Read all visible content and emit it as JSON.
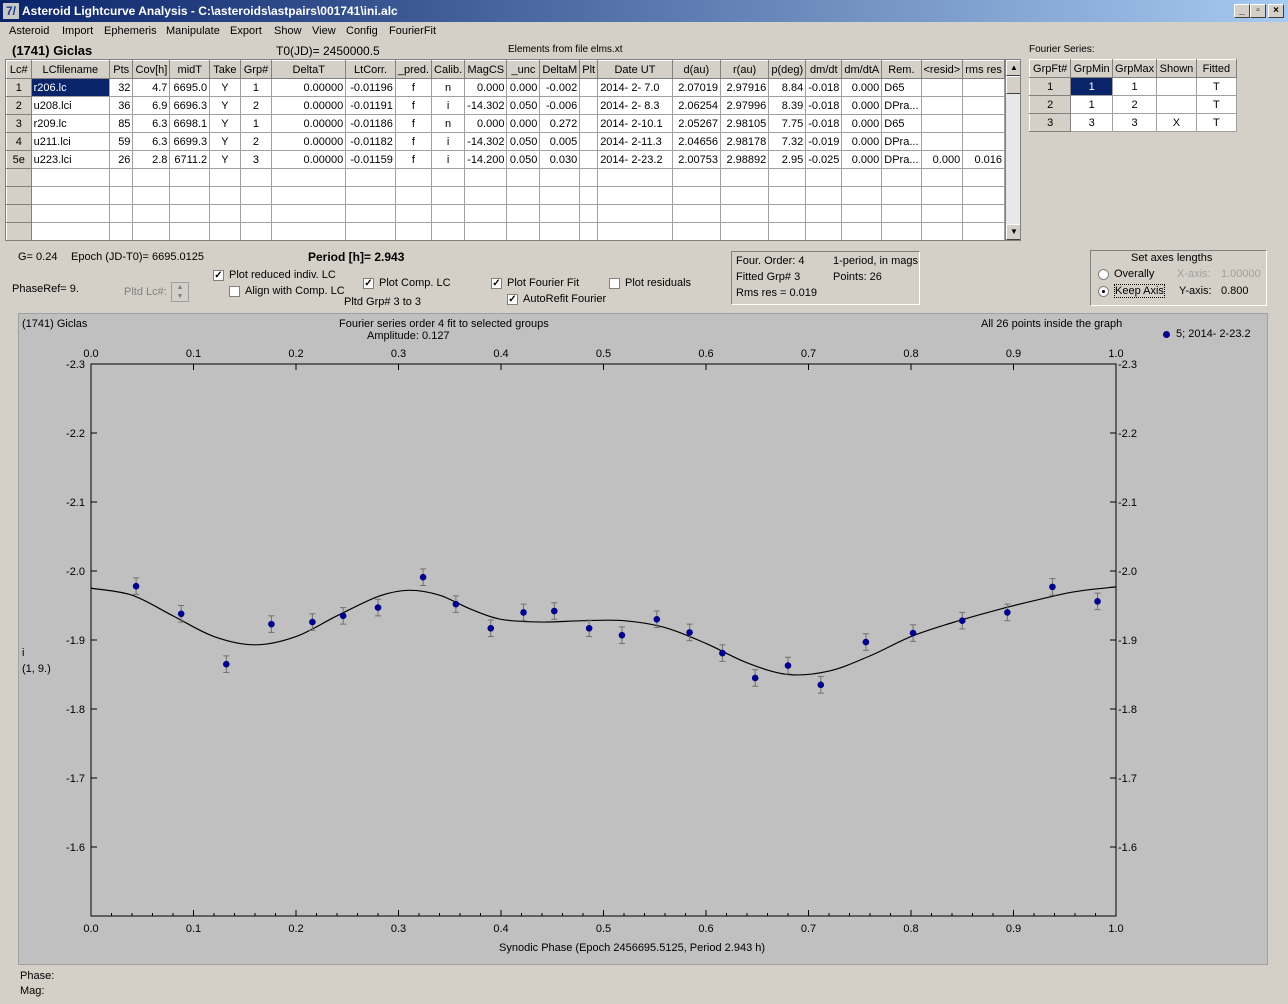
{
  "window": {
    "title": "Asteroid Lightcurve Analysis - C:\\asteroids\\astpairs\\001741\\ini.alc",
    "icon": "7/"
  },
  "menu": [
    "Asteroid",
    "Import",
    "Ephemeris",
    "Manipulate",
    "Export",
    "Show",
    "View",
    "Config",
    "FourierFit"
  ],
  "header": {
    "asteroid": "(1741) Giclas",
    "t0": "T0(JD)= 2450000.5",
    "elements": "Elements from file elms.xt"
  },
  "lc_table": {
    "columns": [
      "Lc#",
      "LCfilename",
      "Pts",
      "Cov[h]",
      "midT",
      "Take",
      "Grp#",
      "DeltaT",
      "LtCorr.",
      "_pred.",
      "Calib.",
      "MagCS",
      "_unc",
      "DeltaM",
      "Plt",
      "Date UT",
      "d(au)",
      "r(au)",
      "p(deg)",
      "dm/dt",
      "dm/dtA",
      "Rem.",
      "<resid>",
      "rms res"
    ],
    "rows": [
      [
        "1",
        "r206.lc",
        "32",
        "4.7",
        "6695.0",
        "Y",
        "1",
        "0.00000",
        "-0.01196",
        "f",
        "n",
        "0.000",
        "0.000",
        "-0.002",
        "",
        "2014- 2- 7.0",
        "2.07019",
        "2.97916",
        "8.84",
        "-0.018",
        "0.000",
        "D65",
        "",
        ""
      ],
      [
        "2",
        "u208.lci",
        "36",
        "6.9",
        "6696.3",
        "Y",
        "2",
        "0.00000",
        "-0.01191",
        "f",
        "i",
        "-14.302",
        "0.050",
        "-0.006",
        "",
        "2014- 2- 8.3",
        "2.06254",
        "2.97996",
        "8.39",
        "-0.018",
        "0.000",
        "DPra...",
        "",
        ""
      ],
      [
        "3",
        "r209.lc",
        "85",
        "6.3",
        "6698.1",
        "Y",
        "1",
        "0.00000",
        "-0.01186",
        "f",
        "n",
        "0.000",
        "0.000",
        "0.272",
        "",
        "2014- 2-10.1",
        "2.05267",
        "2.98105",
        "7.75",
        "-0.018",
        "0.000",
        "D65",
        "",
        ""
      ],
      [
        "4",
        "u211.lci",
        "59",
        "6.3",
        "6699.3",
        "Y",
        "2",
        "0.00000",
        "-0.01182",
        "f",
        "i",
        "-14.302",
        "0.050",
        "0.005",
        "",
        "2014- 2-11.3",
        "2.04656",
        "2.98178",
        "7.32",
        "-0.019",
        "0.000",
        "DPra...",
        "",
        ""
      ],
      [
        "5e",
        "u223.lci",
        "26",
        "2.8",
        "6711.2",
        "Y",
        "3",
        "0.00000",
        "-0.01159",
        "f",
        "i",
        "-14.200",
        "0.050",
        "0.030",
        "",
        "2014- 2-23.2",
        "2.00753",
        "2.98892",
        "2.95",
        "-0.025",
        "0.000",
        "DPra...",
        "0.000",
        "0.016"
      ]
    ]
  },
  "fourier_series": {
    "label": "Fourier Series:",
    "columns": [
      "GrpFt#",
      "GrpMin",
      "GrpMax",
      "Shown",
      "Fitted"
    ],
    "rows": [
      [
        "1",
        "1",
        "1",
        "",
        "T"
      ],
      [
        "2",
        "1",
        "2",
        "",
        "T"
      ],
      [
        "3",
        "3",
        "3",
        "X",
        "T"
      ]
    ]
  },
  "controls": {
    "g": "G= 0.24",
    "epoch": "Epoch (JD-T0)= 6695.0125",
    "period": "Period [h]= 2.943",
    "phaseref": "PhaseRef= 9.",
    "pltd_lc": "Pltd Lc#:",
    "plot_reduced": "Plot reduced indiv. LC",
    "align_comp": "Align with Comp. LC",
    "plot_comp": "Plot Comp. LC",
    "pltd_grp": "Pltd Grp#  3  to  3",
    "plot_fourier": "Plot Fourier Fit",
    "autorefit": "AutoRefit Fourier",
    "plot_residuals": "Plot residuals",
    "checks": {
      "plot_reduced": true,
      "align_comp": false,
      "plot_comp": true,
      "plot_fourier": true,
      "autorefit": true,
      "plot_residuals": false
    }
  },
  "fit_info": {
    "order": "Four. Order:  4",
    "period_mode": "1-period, in mags",
    "fitted": "Fitted Grp# 3",
    "points": "Points: 26",
    "rms": "Rms res     = 0.019"
  },
  "axes_box": {
    "title": "Set axes lengths",
    "overally": "Overally",
    "keep_axis": "Keep Axis",
    "xaxis_label": "X-axis:",
    "xaxis_value": "1.00000",
    "yaxis_label": "Y-axis:",
    "yaxis_value": "0.800",
    "selected": "keep_axis"
  },
  "status": {
    "phase": "Phase:",
    "mag": "Mag:"
  },
  "chart_data": {
    "type": "scatter",
    "title_left": "(1741) Giclas",
    "title_center": "Fourier series order 4 fit to selected groups",
    "subtitle_center": "Amplitude: 0.127",
    "title_right": "All 26 points inside the graph",
    "legend": "5; 2014- 2-23.2",
    "ylabel": "i",
    "ylabel2": "(1, 9.)",
    "xlabel": "Synodic Phase (Epoch 2456695.5125, Period 2.943 h)",
    "xlim": [
      0.0,
      1.0
    ],
    "ylim": [
      -2.3,
      -1.5
    ],
    "y_inverted": true,
    "xticks": [
      "0.0",
      "0.1",
      "0.2",
      "0.3",
      "0.4",
      "0.5",
      "0.6",
      "0.7",
      "0.8",
      "0.9",
      "1.0"
    ],
    "yticks": [
      "-2.3",
      "-2.2",
      "-2.1",
      "-2.0",
      "-1.9",
      "-1.8",
      "-1.7",
      "-1.6"
    ],
    "point_color": "#00008b",
    "series": [
      {
        "name": "5; 2014- 2-23.2",
        "points": [
          [
            0.044,
            -1.978
          ],
          [
            0.088,
            -1.938
          ],
          [
            0.132,
            -1.865
          ],
          [
            0.176,
            -1.923
          ],
          [
            0.216,
            -1.926
          ],
          [
            0.246,
            -1.935
          ],
          [
            0.28,
            -1.947
          ],
          [
            0.324,
            -1.991
          ],
          [
            0.356,
            -1.952
          ],
          [
            0.39,
            -1.917
          ],
          [
            0.422,
            -1.94
          ],
          [
            0.452,
            -1.942
          ],
          [
            0.486,
            -1.917
          ],
          [
            0.518,
            -1.907
          ],
          [
            0.552,
            -1.93
          ],
          [
            0.584,
            -1.911
          ],
          [
            0.616,
            -1.881
          ],
          [
            0.648,
            -1.845
          ],
          [
            0.68,
            -1.863
          ],
          [
            0.712,
            -1.835
          ],
          [
            0.756,
            -1.897
          ],
          [
            0.802,
            -1.91
          ],
          [
            0.85,
            -1.928
          ],
          [
            0.894,
            -1.94
          ],
          [
            0.938,
            -1.977
          ],
          [
            0.982,
            -1.956
          ]
        ],
        "errors": 0.012
      }
    ],
    "fit_curve": [
      [
        0.0,
        -1.975
      ],
      [
        0.04,
        -1.965
      ],
      [
        0.08,
        -1.935
      ],
      [
        0.12,
        -1.905
      ],
      [
        0.16,
        -1.893
      ],
      [
        0.2,
        -1.905
      ],
      [
        0.24,
        -1.935
      ],
      [
        0.28,
        -1.963
      ],
      [
        0.31,
        -1.972
      ],
      [
        0.34,
        -1.965
      ],
      [
        0.37,
        -1.945
      ],
      [
        0.4,
        -1.93
      ],
      [
        0.44,
        -1.926
      ],
      [
        0.48,
        -1.928
      ],
      [
        0.52,
        -1.928
      ],
      [
        0.56,
        -1.918
      ],
      [
        0.6,
        -1.895
      ],
      [
        0.64,
        -1.867
      ],
      [
        0.68,
        -1.85
      ],
      [
        0.72,
        -1.855
      ],
      [
        0.76,
        -1.877
      ],
      [
        0.8,
        -1.905
      ],
      [
        0.84,
        -1.925
      ],
      [
        0.88,
        -1.942
      ],
      [
        0.92,
        -1.957
      ],
      [
        0.96,
        -1.97
      ],
      [
        1.0,
        -1.977
      ]
    ]
  }
}
